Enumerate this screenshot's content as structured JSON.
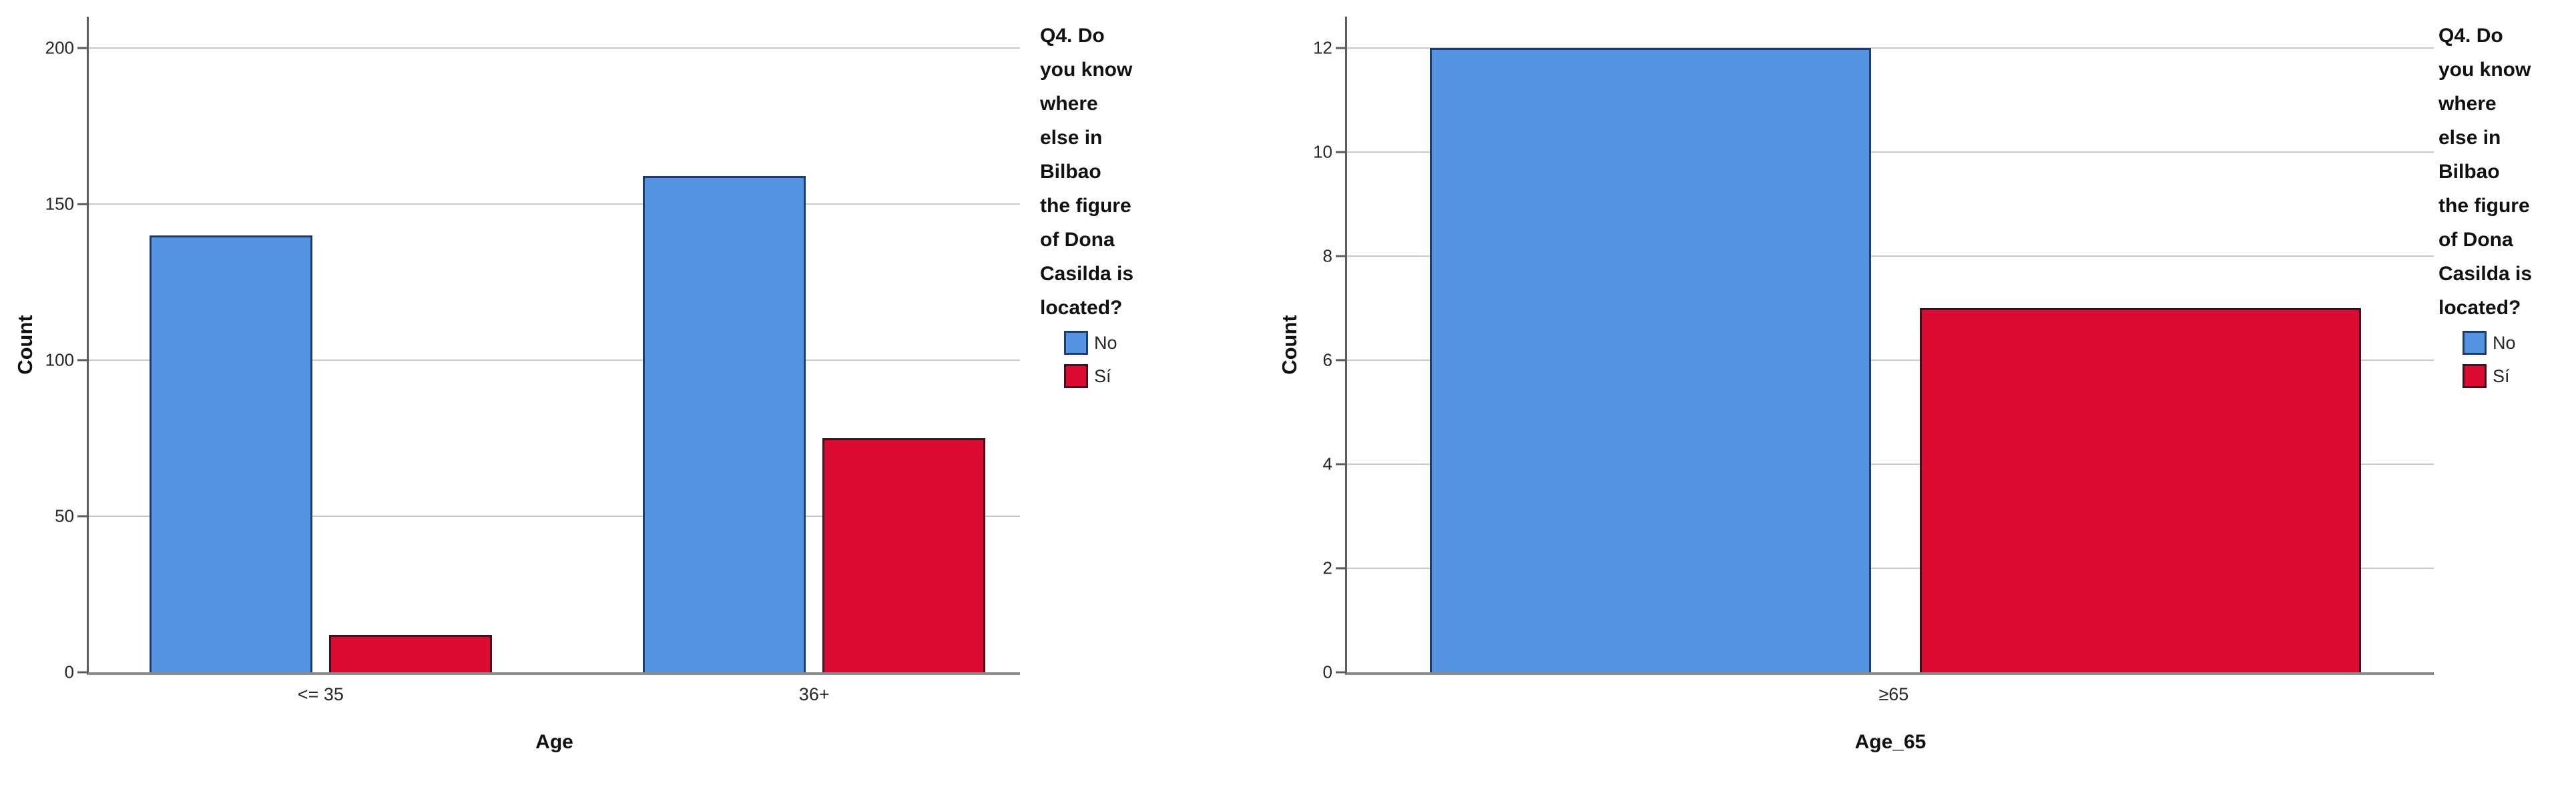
{
  "colors": {
    "bar_no": "#5594e3",
    "bar_si": "#dc0b33",
    "border_no": "#1e3c6e",
    "border_si": "#40101f",
    "gridline": "#c9c9c9",
    "y_axis": "#5c5c5c",
    "x_axis": "#8a8a8a",
    "text": "#262626"
  },
  "chart_data": [
    {
      "type": "bar",
      "title": "",
      "ylabel": "Count",
      "xlabel": "Age",
      "categories": [
        "<= 35",
        "36+"
      ],
      "series": [
        {
          "name": "No",
          "color": "#5594e3",
          "border": "#1e3c6e",
          "values": [
            140,
            159
          ]
        },
        {
          "name": "Sí",
          "color": "#dc0b33",
          "border": "#40101f",
          "values": [
            12,
            75
          ]
        }
      ],
      "yticks": [
        0,
        50,
        100,
        150,
        200
      ],
      "ylim": [
        0,
        210
      ],
      "grid": "horizontal",
      "legend": {
        "position": "right",
        "title": "Q4. Do you know where else in Bilbao the figure of Dona Casilda is located?",
        "title_lines": [
          "Q4. Do",
          "you know",
          "where",
          "else in",
          "Bilbao",
          "the figure",
          "of Dona",
          "Casilda is",
          "located?"
        ],
        "items": [
          {
            "label": "No",
            "color": "#5594e3",
            "border": "#1e3c6e"
          },
          {
            "label": "Sí",
            "color": "#dc0b33",
            "border": "#40101f"
          }
        ]
      }
    },
    {
      "type": "bar",
      "title": "",
      "ylabel": "Count",
      "xlabel": "Age_65",
      "categories": [
        "≥65"
      ],
      "series": [
        {
          "name": "No",
          "color": "#5594e3",
          "border": "#1e3c6e",
          "values": [
            12
          ]
        },
        {
          "name": "Sí",
          "color": "#dc0b33",
          "border": "#40101f",
          "values": [
            7
          ]
        }
      ],
      "yticks": [
        0,
        2,
        4,
        6,
        8,
        10,
        12
      ],
      "ylim": [
        0,
        12.6
      ],
      "grid": "horizontal",
      "legend": {
        "position": "right",
        "title": "Q4. Do you know where else in Bilbao the figure of Dona Casilda is located?",
        "title_lines": [
          "Q4. Do",
          "you know",
          "where",
          "else in",
          "Bilbao",
          "the figure",
          "of Dona",
          "Casilda is",
          "located?"
        ],
        "items": [
          {
            "label": "No",
            "color": "#5594e3",
            "border": "#1e3c6e"
          },
          {
            "label": "Sí",
            "color": "#dc0b33",
            "border": "#40101f"
          }
        ]
      }
    }
  ]
}
